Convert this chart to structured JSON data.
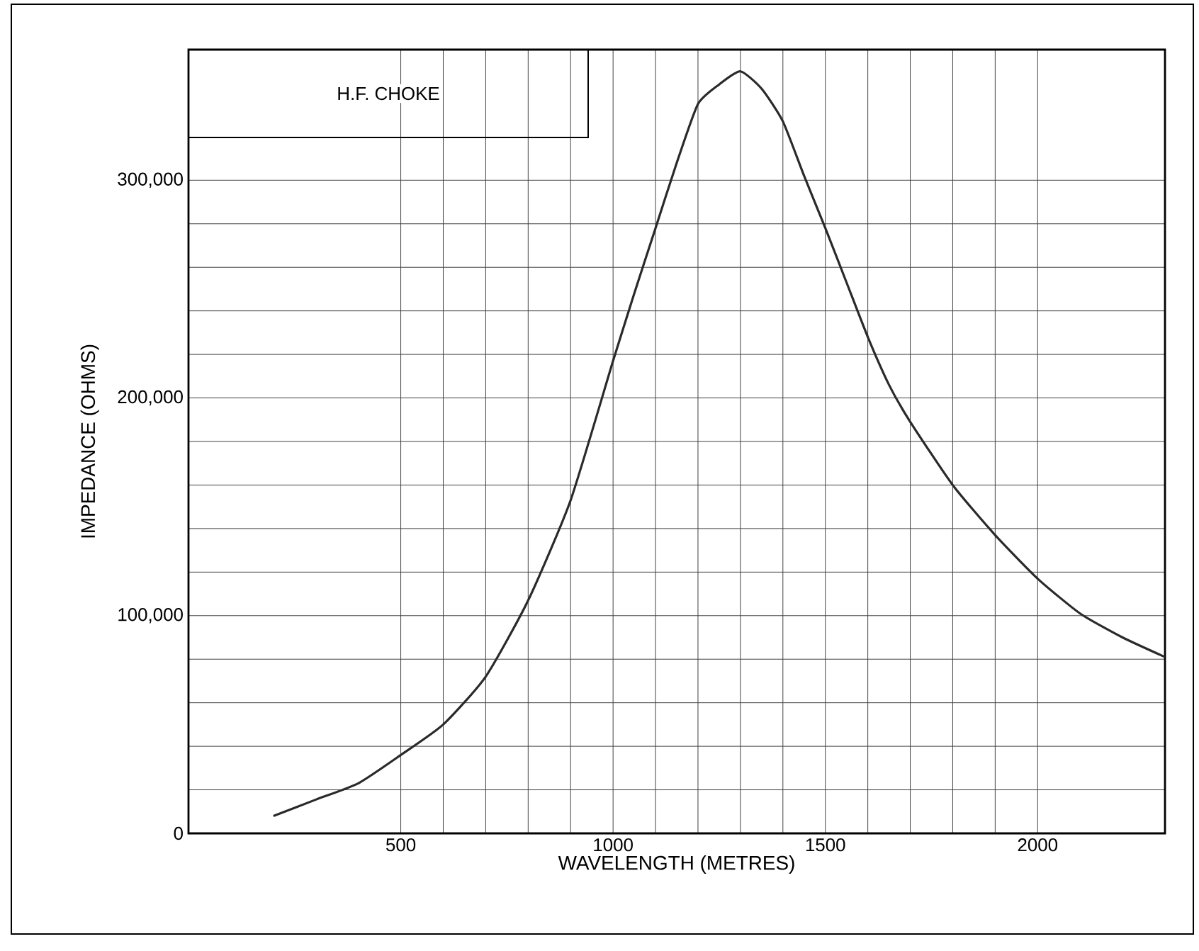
{
  "chart_data": {
    "type": "line",
    "title": "H.F. CHOKE",
    "xlabel": "WAVELENGTH    (METRES)",
    "ylabel": "IMPEDANCE    (OHMS)",
    "x": [
      200,
      300,
      400,
      500,
      600,
      700,
      800,
      900,
      1000,
      1050,
      1100,
      1150,
      1200,
      1250,
      1300,
      1350,
      1400,
      1450,
      1500,
      1550,
      1600,
      1650,
      1700,
      1800,
      1900,
      2000,
      2100,
      2200,
      2300
    ],
    "series": [
      {
        "color": "#2a2a2a",
        "values": [
          8000,
          15500,
          23000,
          36000,
          50000,
          72000,
          107000,
          153000,
          217000,
          248000,
          278000,
          308000,
          335000,
          344000,
          350000,
          342000,
          327000,
          302000,
          278000,
          253000,
          228000,
          206000,
          189000,
          160000,
          137000,
          117000,
          101000,
          90000,
          81000
        ]
      }
    ],
    "xlim": [
      0,
      2300
    ],
    "ylim": [
      0,
      360000
    ],
    "xticks": [
      500,
      1000,
      1500,
      2000
    ],
    "yticks": [
      0,
      {
        "value": 100000,
        "label": "100,000"
      },
      {
        "value": 200000,
        "label": "200,000"
      },
      {
        "value": 300000,
        "label": "300,000"
      }
    ],
    "grid": true,
    "marker": "none",
    "line_style": "solid"
  }
}
